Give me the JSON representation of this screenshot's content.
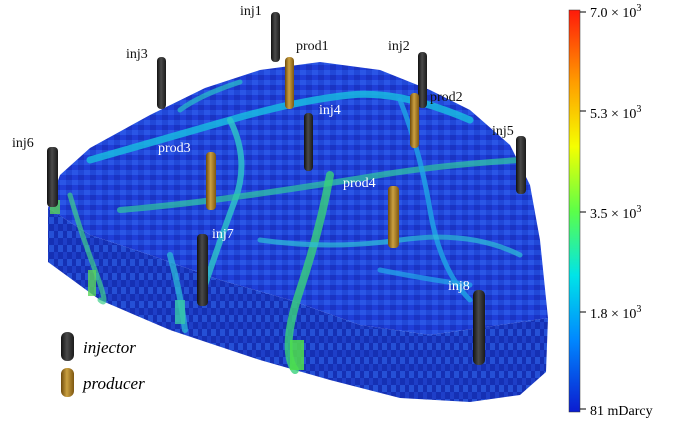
{
  "wells": {
    "inj1": "inj1",
    "inj2": "inj2",
    "inj3": "inj3",
    "inj4": "inj4",
    "inj5": "inj5",
    "inj6": "inj6",
    "inj7": "inj7",
    "inj8": "inj8",
    "prod1": "prod1",
    "prod2": "prod2",
    "prod3": "prod3",
    "prod4": "prod4"
  },
  "legend": {
    "injector": "injector",
    "producer": "producer",
    "injector_color": "#2a2a2a",
    "producer_color": "#a8781c"
  },
  "colorbar": {
    "ticks": [
      {
        "html": "7.0 × 10",
        "sup": "3"
      },
      {
        "html": "5.3 × 10",
        "sup": "3"
      },
      {
        "html": "3.5 × 10",
        "sup": "3"
      },
      {
        "html": "1.8 × 10",
        "sup": "3"
      },
      {
        "html": "81 mDarcy",
        "sup": ""
      }
    ],
    "stops": [
      "#ff1a0a",
      "#ff9d00",
      "#f5ff00",
      "#5cff48",
      "#00e4e8",
      "#0088ff",
      "#0b1cd0"
    ]
  }
}
